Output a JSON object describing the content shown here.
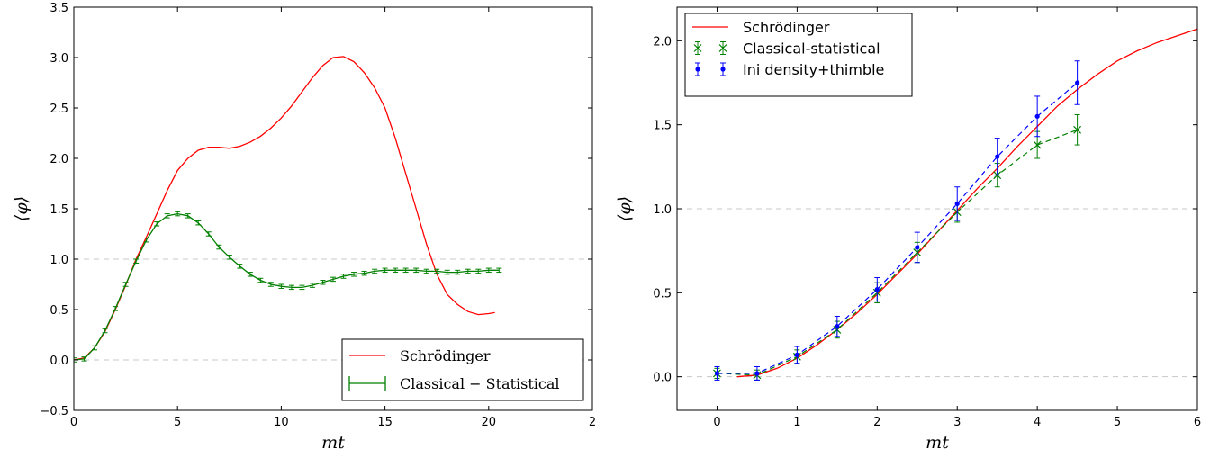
{
  "chart_data": [
    {
      "type": "line",
      "xlabel": "mt",
      "ylabel": "⟨φ⟩",
      "xlim": [
        0,
        25
      ],
      "ylim": [
        -0.5,
        3.5
      ],
      "xticks": [
        "0",
        "5",
        "10",
        "15",
        "20",
        "2"
      ],
      "yticks": [
        "−0.5",
        "0.0",
        "0.5",
        "1.0",
        "1.5",
        "2.0",
        "2.5",
        "3.0",
        "3.5"
      ],
      "reference_lines": [
        0.0,
        1.0
      ],
      "legend_position": "bottom-right",
      "series": [
        {
          "name": "Schrödinger",
          "color": "#ff0000",
          "style": "line",
          "x": [
            0,
            0.5,
            1,
            1.5,
            2,
            2.5,
            3,
            3.5,
            4,
            4.5,
            5,
            5.5,
            6,
            6.5,
            7,
            7.5,
            8,
            8.5,
            9,
            9.5,
            10,
            10.5,
            11,
            11.5,
            12,
            12.5,
            13,
            13.5,
            14,
            14.5,
            15,
            15.5,
            16,
            16.5,
            17,
            17.5,
            18,
            18.5,
            19,
            19.5,
            20,
            20.3
          ],
          "y": [
            0.0,
            0.02,
            0.12,
            0.28,
            0.5,
            0.74,
            1.0,
            1.22,
            1.45,
            1.68,
            1.88,
            2.0,
            2.08,
            2.11,
            2.11,
            2.1,
            2.12,
            2.16,
            2.22,
            2.3,
            2.4,
            2.52,
            2.66,
            2.8,
            2.92,
            3.0,
            3.01,
            2.96,
            2.85,
            2.7,
            2.5,
            2.2,
            1.85,
            1.5,
            1.15,
            0.85,
            0.65,
            0.55,
            0.48,
            0.45,
            0.46,
            0.47
          ]
        },
        {
          "name": "Classical − Statistical",
          "color": "#008000",
          "style": "errorbar-line",
          "x": [
            0,
            0.5,
            1,
            1.5,
            2,
            2.5,
            3,
            3.5,
            4,
            4.5,
            5,
            5.5,
            6,
            6.5,
            7,
            7.5,
            8,
            8.5,
            9,
            9.5,
            10,
            10.5,
            11,
            11.5,
            12,
            12.5,
            13,
            13.5,
            14,
            14.5,
            15,
            15.5,
            16,
            16.5,
            17,
            17.5,
            18,
            18.5,
            19,
            19.5,
            20,
            20.5
          ],
          "y": [
            0.0,
            0.01,
            0.12,
            0.29,
            0.51,
            0.75,
            0.98,
            1.19,
            1.35,
            1.43,
            1.45,
            1.43,
            1.36,
            1.25,
            1.12,
            1.02,
            0.93,
            0.85,
            0.79,
            0.75,
            0.73,
            0.72,
            0.72,
            0.74,
            0.77,
            0.8,
            0.83,
            0.85,
            0.86,
            0.88,
            0.89,
            0.89,
            0.89,
            0.89,
            0.88,
            0.88,
            0.87,
            0.87,
            0.88,
            0.88,
            0.89,
            0.89
          ],
          "err": 0.02
        }
      ]
    },
    {
      "type": "line",
      "xlabel": "mt",
      "ylabel": "⟨φ⟩",
      "xlim": [
        -0.5,
        6
      ],
      "ylim": [
        -0.2,
        2.2
      ],
      "xticks": [
        "0",
        "1",
        "2",
        "3",
        "4",
        "5",
        "6"
      ],
      "yticks": [
        "0.0",
        "0.5",
        "1.0",
        "1.5",
        "2.0"
      ],
      "reference_lines": [
        0.0,
        1.0
      ],
      "legend_position": "top-left",
      "series": [
        {
          "name": "Schrödinger",
          "color": "#ff0000",
          "style": "line",
          "x": [
            0.25,
            0.5,
            0.75,
            1,
            1.25,
            1.5,
            1.75,
            2,
            2.25,
            2.5,
            2.75,
            3,
            3.25,
            3.5,
            3.75,
            4,
            4.25,
            4.5,
            4.75,
            5,
            5.25,
            5.5,
            5.75,
            6
          ],
          "y": [
            0.0,
            0.01,
            0.05,
            0.11,
            0.19,
            0.28,
            0.38,
            0.49,
            0.61,
            0.73,
            0.86,
            0.99,
            1.12,
            1.24,
            1.37,
            1.49,
            1.61,
            1.71,
            1.8,
            1.88,
            1.94,
            1.99,
            2.03,
            2.07
          ]
        },
        {
          "name": "Classical-statistical",
          "color": "#008000",
          "style": "errorbar-x-dashed",
          "x": [
            0,
            0.5,
            1,
            1.5,
            2,
            2.5,
            3,
            3.5,
            4,
            4.5
          ],
          "y": [
            0.02,
            0.01,
            0.12,
            0.28,
            0.5,
            0.74,
            0.98,
            1.2,
            1.38,
            1.47
          ],
          "err": [
            0.03,
            0.03,
            0.04,
            0.05,
            0.06,
            0.06,
            0.06,
            0.07,
            0.08,
            0.09
          ]
        },
        {
          "name": "Ini density+thimble",
          "color": "#0000ff",
          "style": "errorbar-dot-dashed",
          "x": [
            0,
            0.5,
            1,
            1.5,
            2,
            2.5,
            3,
            3.5,
            4,
            4.5
          ],
          "y": [
            0.02,
            0.02,
            0.13,
            0.3,
            0.52,
            0.77,
            1.03,
            1.31,
            1.55,
            1.75
          ],
          "err": [
            0.04,
            0.04,
            0.05,
            0.06,
            0.07,
            0.09,
            0.1,
            0.11,
            0.12,
            0.13
          ]
        }
      ]
    }
  ]
}
